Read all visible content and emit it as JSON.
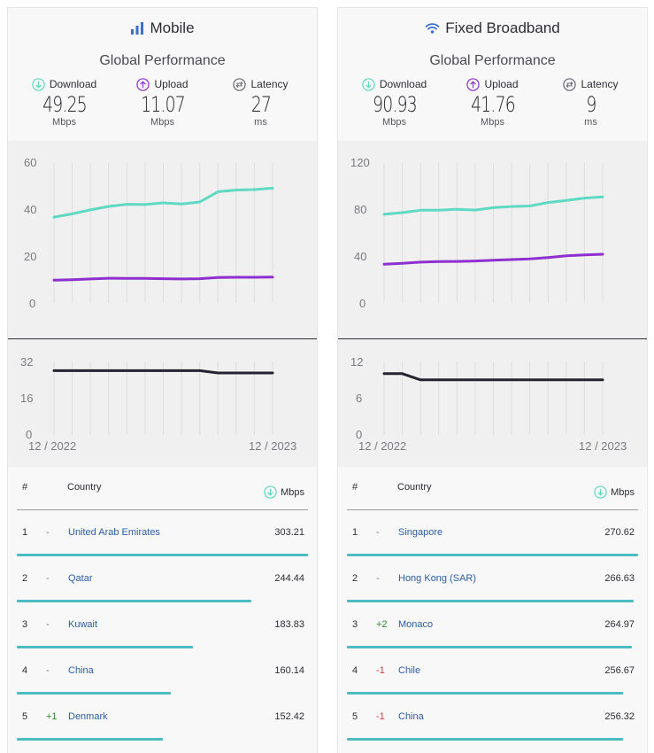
{
  "panels": {
    "mobile": {
      "title": "Mobile",
      "icon": "signal-bars-icon",
      "subtitle": "Global Performance",
      "download": {
        "label": "Download",
        "value": "49.25",
        "unit": "Mbps"
      },
      "upload": {
        "label": "Upload",
        "value": "11.07",
        "unit": "Mbps"
      },
      "latency": {
        "label": "Latency",
        "value": "27",
        "unit": "ms"
      },
      "speed_chart": {
        "y_ticks": [
          "60",
          "40",
          "20",
          "0"
        ],
        "ylim": [
          0,
          60
        ]
      },
      "latency_chart": {
        "y_ticks": [
          "32",
          "16",
          "0"
        ],
        "ylim": [
          0,
          32
        ],
        "x_start": "12 / 2022",
        "x_end": "12 / 2023"
      },
      "table": {
        "col_num": "#",
        "col_country": "Country",
        "col_unit": "Mbps",
        "rows": [
          {
            "rank": "1",
            "change": "-",
            "country": "United Arab Emirates",
            "value": "303.21",
            "share": 1.0
          },
          {
            "rank": "2",
            "change": "-",
            "country": "Qatar",
            "value": "244.44",
            "share": 0.806
          },
          {
            "rank": "3",
            "change": "-",
            "country": "Kuwait",
            "value": "183.83",
            "share": 0.606
          },
          {
            "rank": "4",
            "change": "-",
            "country": "China",
            "value": "160.14",
            "share": 0.528
          },
          {
            "rank": "5",
            "change": "+1",
            "country": "Denmark",
            "value": "152.42",
            "share": 0.503
          }
        ]
      }
    },
    "fixed": {
      "title": "Fixed Broadband",
      "icon": "wifi-icon",
      "subtitle": "Global Performance",
      "download": {
        "label": "Download",
        "value": "90.93",
        "unit": "Mbps"
      },
      "upload": {
        "label": "Upload",
        "value": "41.76",
        "unit": "Mbps"
      },
      "latency": {
        "label": "Latency",
        "value": "9",
        "unit": "ms"
      },
      "speed_chart": {
        "y_ticks": [
          "120",
          "80",
          "40",
          "0"
        ],
        "ylim": [
          0,
          120
        ]
      },
      "latency_chart": {
        "y_ticks": [
          "12",
          "6",
          "0"
        ],
        "ylim": [
          0,
          12
        ],
        "x_start": "12 / 2022",
        "x_end": "12 / 2023"
      },
      "table": {
        "col_num": "#",
        "col_country": "Country",
        "col_unit": "Mbps",
        "rows": [
          {
            "rank": "1",
            "change": "-",
            "country": "Singapore",
            "value": "270.62",
            "share": 1.0
          },
          {
            "rank": "2",
            "change": "-",
            "country": "Hong Kong (SAR)",
            "value": "266.63",
            "share": 0.985
          },
          {
            "rank": "3",
            "change": "+2",
            "country": "Monaco",
            "value": "264.97",
            "share": 0.979
          },
          {
            "rank": "4",
            "change": "-1",
            "country": "Chile",
            "value": "256.67",
            "share": 0.948
          },
          {
            "rank": "5",
            "change": "-1",
            "country": "China",
            "value": "256.32",
            "share": 0.947
          }
        ]
      }
    }
  },
  "colors": {
    "download": "#5fd9c1",
    "upload": "#8e2fcf",
    "latency_line": "#24232f",
    "link": "#2b5da6",
    "bar": "#4cbcc0",
    "up": "#2e8b2e",
    "down": "#d23c3c"
  },
  "chart_data": [
    {
      "type": "line",
      "name": "mobile-speed",
      "x": [
        "Dec 2022",
        "Jan 2023",
        "Feb 2023",
        "Mar 2023",
        "Apr 2023",
        "May 2023",
        "Jun 2023",
        "Jul 2023",
        "Aug 2023",
        "Sep 2023",
        "Oct 2023",
        "Nov 2023",
        "Dec 2023"
      ],
      "series": [
        {
          "values": [
            36.8,
            38.2,
            39.9,
            41.4,
            42.3,
            42.2,
            42.9,
            42.4,
            43.3,
            47.7,
            48.4,
            48.6,
            49.2
          ]
        },
        {
          "values": [
            9.8,
            10.0,
            10.3,
            10.6,
            10.5,
            10.5,
            10.4,
            10.3,
            10.4,
            10.9,
            11.0,
            11.0,
            11.07
          ]
        }
      ],
      "ylim": [
        0,
        60
      ],
      "grid": "vertical"
    },
    {
      "type": "line",
      "name": "mobile-latency",
      "x": [
        "Dec 2022",
        "Jan 2023",
        "Feb 2023",
        "Mar 2023",
        "Apr 2023",
        "May 2023",
        "Jun 2023",
        "Jul 2023",
        "Aug 2023",
        "Sep 2023",
        "Oct 2023",
        "Nov 2023",
        "Dec 2023"
      ],
      "series": [
        {
          "values": [
            28,
            28,
            28,
            28,
            28,
            28,
            28,
            28,
            28,
            27,
            27,
            27,
            27
          ]
        }
      ],
      "ylim": [
        0,
        32
      ],
      "xlabel_start": "12 / 2022",
      "xlabel_end": "12 / 2023",
      "grid": "vertical"
    },
    {
      "type": "line",
      "name": "fixed-speed",
      "x": [
        "Dec 2022",
        "Jan 2023",
        "Feb 2023",
        "Mar 2023",
        "Apr 2023",
        "May 2023",
        "Jun 2023",
        "Jul 2023",
        "Aug 2023",
        "Sep 2023",
        "Oct 2023",
        "Nov 2023",
        "Dec 2023"
      ],
      "series": [
        {
          "values": [
            76.0,
            77.5,
            79.5,
            79.6,
            80.3,
            79.7,
            81.7,
            82.7,
            83.2,
            86.1,
            87.9,
            89.9,
            90.9
          ]
        },
        {
          "values": [
            33.3,
            34.0,
            35.0,
            35.5,
            35.6,
            36.0,
            36.7,
            37.2,
            37.8,
            39.0,
            40.4,
            41.2,
            41.76
          ]
        }
      ],
      "ylim": [
        0,
        120
      ],
      "grid": "vertical"
    },
    {
      "type": "line",
      "name": "fixed-latency",
      "x": [
        "Dec 2022",
        "Jan 2023",
        "Feb 2023",
        "Mar 2023",
        "Apr 2023",
        "May 2023",
        "Jun 2023",
        "Jul 2023",
        "Aug 2023",
        "Sep 2023",
        "Oct 2023",
        "Nov 2023",
        "Dec 2023"
      ],
      "series": [
        {
          "values": [
            10,
            10,
            9,
            9,
            9,
            9,
            9,
            9,
            9,
            9,
            9,
            9,
            9
          ]
        }
      ],
      "ylim": [
        0,
        12
      ],
      "xlabel_start": "12 / 2022",
      "xlabel_end": "12 / 2023",
      "grid": "vertical"
    }
  ]
}
